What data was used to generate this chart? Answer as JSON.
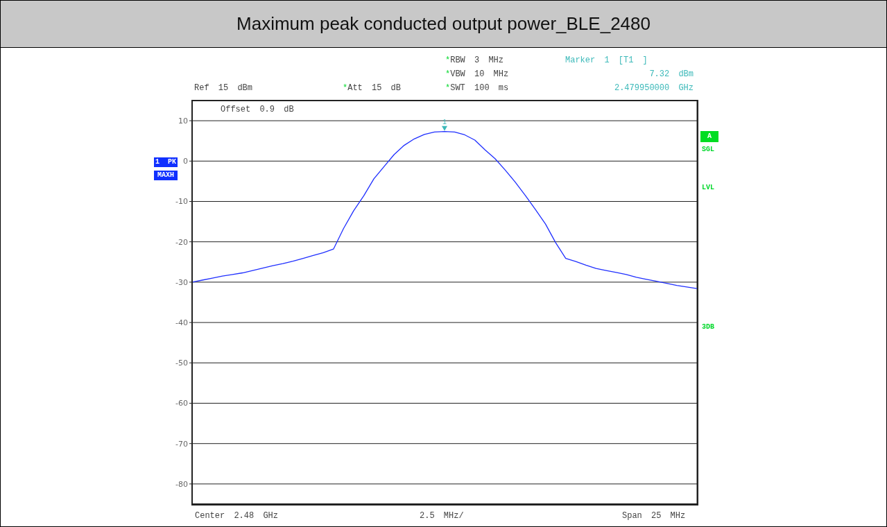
{
  "chart_data": {
    "type": "line",
    "title": "Maximum peak conducted output power_BLE_2480",
    "categories": [
      null,
      null,
      null,
      null,
      null,
      null,
      null,
      null,
      null,
      null,
      null,
      null,
      null,
      null,
      null,
      null,
      null,
      null,
      null,
      null,
      null,
      null,
      null,
      null,
      null,
      null,
      null,
      null,
      null,
      null,
      null,
      null,
      null,
      null,
      null,
      null,
      null,
      null,
      null,
      null,
      null,
      null,
      null,
      null,
      null,
      null,
      null,
      null,
      null,
      null,
      null
    ],
    "values": [
      -30.0,
      -29.5,
      -29.0,
      -28.5,
      -28.1,
      -27.7,
      -27.1,
      -26.5,
      -25.9,
      -25.4,
      -24.8,
      -24.1,
      -23.4,
      -22.7,
      -21.8,
      -16.7,
      -12.3,
      -8.6,
      -4.4,
      -1.4,
      1.6,
      3.9,
      5.5,
      6.6,
      7.2,
      7.32,
      7.2,
      6.5,
      5.2,
      2.8,
      0.6,
      -2.2,
      -5.2,
      -8.5,
      -12.0,
      -15.6,
      -20.2,
      -24.1,
      -24.9,
      -25.8,
      -26.6,
      -27.1,
      -27.6,
      -28.1,
      -28.8,
      -29.3,
      -29.8,
      -30.3,
      -30.8,
      -31.2,
      -31.6
    ],
    "color": "#1f2fff",
    "ylim": [
      -85,
      15
    ],
    "yticks": [
      10,
      0,
      -10,
      -20,
      -30,
      -40,
      -50,
      -60,
      -70,
      -80
    ],
    "grid": true,
    "tick_labels": "y",
    "annotations": [
      "*RBW 3 MHz",
      "*VBW 10 MHz",
      "*SWT 100 ms",
      "Ref 15 dBm",
      "*Att 15 dB",
      "Marker 1 [T1 ]",
      "7.32 dBm",
      "2.479950000 GHz",
      "Offset 0.9 dB",
      "1 PK",
      "MAXH",
      "A",
      "SGL",
      "LVL",
      "3DB",
      "Center 2.48 GHz",
      "2.5 MHz/",
      "Span 25 MHz",
      {
        "text": "1",
        "y": 7.32
      }
    ]
  }
}
